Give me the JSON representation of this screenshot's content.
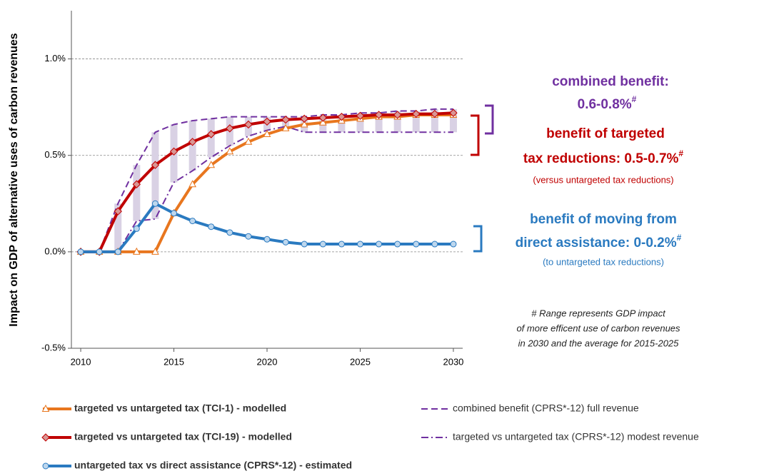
{
  "chart_data": {
    "type": "line",
    "y_label": "Impact on GDP of alternative uses of carbon revenues",
    "x": [
      2010,
      2011,
      2012,
      2013,
      2014,
      2015,
      2016,
      2017,
      2018,
      2019,
      2020,
      2021,
      2022,
      2023,
      2024,
      2025,
      2026,
      2027,
      2028,
      2029,
      2030
    ],
    "xlim": [
      2009.5,
      2030.5
    ],
    "xticks": [
      2010,
      2015,
      2020,
      2025,
      2030
    ],
    "ylim": [
      -0.5,
      1.25
    ],
    "yticks": [
      {
        "value": -0.5,
        "label": "-0.5%"
      },
      {
        "value": 0,
        "label": "0.0%"
      },
      {
        "value": 0.5,
        "label": "0.5%"
      },
      {
        "value": 1,
        "label": "1.0%"
      }
    ],
    "grid": true,
    "legend": "bottom",
    "range_fill": "#d9d1e4",
    "series": [
      {
        "name": "targeted vs untargeted tax (TCI-1) - modelled",
        "color": "#e8761e",
        "style": "solid",
        "marker": "triangle",
        "marker_fill": "#ffffff",
        "values": [
          0,
          0,
          0,
          0,
          0,
          0.2,
          0.35,
          0.45,
          0.52,
          0.57,
          0.61,
          0.64,
          0.66,
          0.67,
          0.68,
          0.69,
          0.7,
          0.7,
          0.71,
          0.71,
          0.71
        ]
      },
      {
        "name": "targeted vs untargeted tax (TCI-19) - modelled",
        "color": "#c00000",
        "style": "solid",
        "marker": "diamond",
        "marker_fill": "#d99694",
        "values": [
          0,
          0,
          0.21,
          0.35,
          0.45,
          0.52,
          0.57,
          0.61,
          0.64,
          0.66,
          0.675,
          0.685,
          0.69,
          0.695,
          0.7,
          0.705,
          0.71,
          0.71,
          0.715,
          0.715,
          0.72
        ]
      },
      {
        "name": "untargeted tax vs direct assistance (CPRS*-12) - estimated",
        "color": "#2a7ac0",
        "style": "solid",
        "marker": "circle",
        "marker_fill": "#bdd7ee",
        "values": [
          0,
          0,
          0,
          0.12,
          0.25,
          0.2,
          0.16,
          0.13,
          0.1,
          0.08,
          0.065,
          0.05,
          0.04,
          0.04,
          0.04,
          0.04,
          0.04,
          0.04,
          0.04,
          0.04,
          0.04
        ]
      },
      {
        "name": "combined benefit (CPRS*-12) full revenue",
        "color": "#7030a0",
        "style": "dash",
        "marker": "none",
        "values": [
          null,
          0,
          0.25,
          0.45,
          0.62,
          0.66,
          0.68,
          0.69,
          0.7,
          0.7,
          0.7,
          0.7,
          0.7,
          0.71,
          0.71,
          0.72,
          0.72,
          0.73,
          0.73,
          0.74,
          0.74
        ]
      },
      {
        "name": "targeted vs untargeted tax (CPRS*-12) modest revenue",
        "color": "#7030a0",
        "style": "dashdot",
        "marker": "none",
        "values": [
          null,
          null,
          0,
          0.16,
          0.17,
          0.36,
          0.42,
          0.49,
          0.55,
          0.6,
          0.63,
          0.65,
          0.62,
          0.62,
          0.62,
          0.62,
          0.62,
          0.62,
          0.62,
          0.62,
          0.62
        ]
      }
    ],
    "annotations": {
      "combined_title": "combined benefit:",
      "combined_range": "0.6-0.8%",
      "combined_mark": "#",
      "targeted_title": "benefit of targeted",
      "targeted_range": "tax reductions: 0.5-0.7%",
      "targeted_mark": "#",
      "targeted_note": "(versus untargeted tax reductions)",
      "direct_title": "benefit of moving from",
      "direct_range": "direct assistance:  0-0.2%",
      "direct_mark": "#",
      "direct_note": "(to untargeted tax reductions)",
      "footnote": [
        "# Range represents GDP impact",
        "of more efficent use of carbon revenues",
        "in 2030 and the average for 2015-2025"
      ]
    }
  }
}
